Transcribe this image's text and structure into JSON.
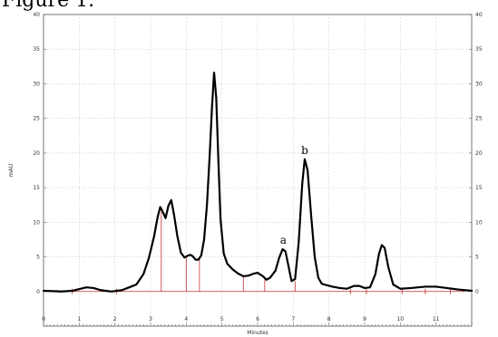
{
  "figure_heading": "Figure 1.",
  "chart_data": {
    "type": "line",
    "title": "",
    "xlabel": "Minutes",
    "ylabel": "mAU",
    "xlim": [
      0,
      12
    ],
    "ylim": [
      -5,
      40
    ],
    "x_ticks": [
      0,
      1,
      2,
      3,
      4,
      5,
      6,
      7,
      8,
      9,
      10,
      11
    ],
    "y_ticks": [
      0,
      5,
      10,
      15,
      20,
      25,
      30,
      35,
      40
    ],
    "grid": true,
    "legend": "none",
    "series": [
      {
        "color": "#000000",
        "x": [
          0.0,
          0.5,
          0.8,
          1.2,
          1.4,
          1.6,
          1.9,
          2.2,
          2.4,
          2.6,
          2.8,
          2.95,
          3.1,
          3.2,
          3.27,
          3.35,
          3.42,
          3.5,
          3.58,
          3.66,
          3.75,
          3.85,
          3.95,
          4.05,
          4.12,
          4.18,
          4.26,
          4.34,
          4.42,
          4.5,
          4.58,
          4.66,
          4.72,
          4.78,
          4.84,
          4.9,
          4.96,
          5.05,
          5.15,
          5.3,
          5.45,
          5.6,
          5.75,
          5.9,
          6.0,
          6.15,
          6.25,
          6.35,
          6.5,
          6.6,
          6.7,
          6.78,
          6.86,
          6.95,
          7.05,
          7.15,
          7.25,
          7.32,
          7.4,
          7.5,
          7.6,
          7.7,
          7.8,
          7.95,
          8.1,
          8.3,
          8.5,
          8.7,
          8.85,
          9.0,
          9.15,
          9.3,
          9.4,
          9.48,
          9.56,
          9.66,
          9.8,
          10.0,
          10.3,
          10.7,
          11.0,
          11.3,
          11.6,
          12.0
        ],
        "y": [
          0.1,
          0.0,
          0.1,
          0.6,
          0.5,
          0.2,
          0.0,
          0.2,
          0.6,
          1.0,
          2.5,
          4.8,
          8.0,
          10.8,
          12.2,
          11.4,
          10.6,
          12.4,
          13.2,
          11.0,
          8.0,
          5.6,
          4.9,
          5.2,
          5.3,
          5.1,
          4.6,
          4.6,
          5.2,
          7.5,
          12.5,
          20.0,
          26.5,
          31.6,
          28.0,
          19.0,
          10.5,
          5.5,
          4.0,
          3.2,
          2.6,
          2.2,
          2.3,
          2.6,
          2.7,
          2.2,
          1.7,
          2.0,
          3.0,
          4.8,
          6.1,
          5.8,
          3.8,
          1.5,
          1.8,
          7.0,
          15.5,
          19.1,
          17.5,
          11.0,
          5.0,
          2.0,
          1.1,
          0.9,
          0.7,
          0.5,
          0.4,
          0.8,
          0.8,
          0.5,
          0.6,
          2.5,
          5.4,
          6.7,
          6.3,
          3.6,
          1.0,
          0.4,
          0.5,
          0.7,
          0.7,
          0.5,
          0.3,
          0.1
        ]
      }
    ],
    "integration_marks": {
      "color": "#c03030",
      "baseline_x": [
        0.8,
        11.8
      ],
      "drops": [
        {
          "x": 3.3,
          "y": 11.5
        },
        {
          "x": 4.0,
          "y": 5.0
        },
        {
          "x": 4.37,
          "y": 4.6
        },
        {
          "x": 5.6,
          "y": 2.2
        },
        {
          "x": 6.2,
          "y": 1.8
        },
        {
          "x": 7.05,
          "y": 1.5
        }
      ],
      "ticks_x": [
        0.8,
        2.05,
        8.6,
        9.05,
        10.05,
        10.7,
        11.4
      ]
    },
    "annotations": [
      {
        "text": "a",
        "x": 6.72,
        "y": 6.1
      },
      {
        "text": "b",
        "x": 7.32,
        "y": 19.1
      }
    ]
  }
}
